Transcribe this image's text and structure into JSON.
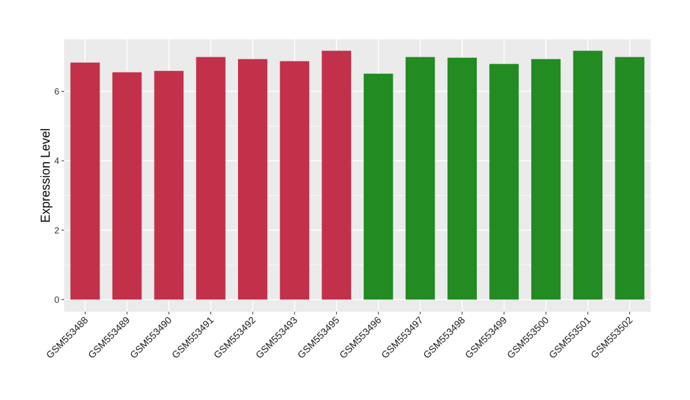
{
  "chart_data": {
    "type": "bar",
    "title": "",
    "xlabel": "",
    "ylabel": "Expression Level",
    "ylim": [
      -0.35,
      7.5
    ],
    "yticks": [
      0,
      2,
      4,
      6
    ],
    "grid": true,
    "legend": "none",
    "categories": [
      "GSM553488",
      "GSM553489",
      "GSM553490",
      "GSM553491",
      "GSM553492",
      "GSM553493",
      "GSM553495",
      "GSM553496",
      "GSM553497",
      "GSM553498",
      "GSM553499",
      "GSM553500",
      "GSM553501",
      "GSM553502"
    ],
    "values": [
      6.83,
      6.55,
      6.59,
      6.99,
      6.93,
      6.87,
      7.17,
      6.51,
      6.99,
      6.97,
      6.79,
      6.93,
      7.17,
      6.99
    ],
    "group_index": [
      0,
      0,
      0,
      0,
      0,
      0,
      0,
      1,
      1,
      1,
      1,
      1,
      1,
      1
    ],
    "colors": {
      "group_0": "#C3304A",
      "group_1": "#228B22",
      "panel_bg": "#EBEBEB",
      "grid": "#FFFFFF"
    }
  }
}
